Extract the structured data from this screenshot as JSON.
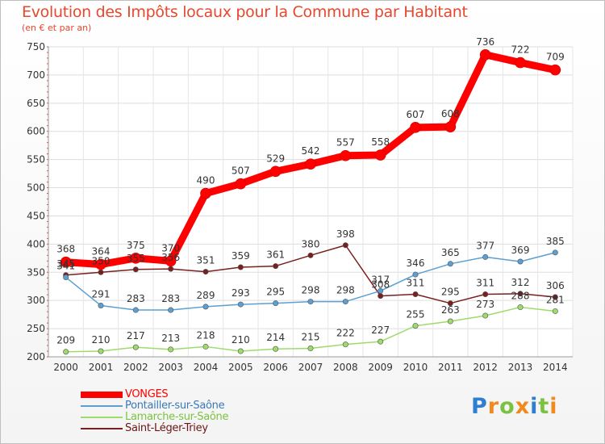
{
  "chart_data": {
    "type": "line",
    "title": "Evolution des Impôts locaux pour la Commune par Habitant",
    "subtitle": "(en € et par an)",
    "x": [
      "2000",
      "2001",
      "2002",
      "2003",
      "2004",
      "2005",
      "2006",
      "2007",
      "2008",
      "2009",
      "2010",
      "2011",
      "2012",
      "2013",
      "2014"
    ],
    "ylim": [
      200,
      750
    ],
    "yticks": [
      200,
      250,
      300,
      350,
      400,
      450,
      500,
      550,
      600,
      650,
      700,
      750
    ],
    "grid": true,
    "legend_position": "bottom-left",
    "series": [
      {
        "name": "VONGES",
        "color": "#ff0000",
        "text_color": "#ff0000",
        "values": [
          368,
          364,
          375,
          370,
          490,
          507,
          529,
          542,
          557,
          558,
          607,
          608,
          736,
          722,
          709
        ]
      },
      {
        "name": "Pontailler-sur-Saône",
        "color": "#5b9fd3",
        "text_color": "#3a7ab8",
        "values": [
          341,
          291,
          283,
          283,
          289,
          293,
          295,
          298,
          298,
          317,
          346,
          365,
          377,
          369,
          385
        ]
      },
      {
        "name": "Lamarche-sur-Saône",
        "color": "#9ddb6a",
        "text_color": "#7cc242",
        "values": [
          209,
          210,
          217,
          213,
          218,
          210,
          214,
          215,
          222,
          227,
          255,
          263,
          273,
          288,
          281
        ]
      },
      {
        "name": "Saint-Léger-Triey",
        "color": "#7a1f1f",
        "text_color": "#6b1515",
        "values": [
          345,
          350,
          355,
          356,
          351,
          359,
          361,
          380,
          398,
          308,
          311,
          295,
          311,
          312,
          306
        ]
      }
    ]
  },
  "logo": {
    "letters": [
      "P",
      "r",
      "o",
      "x",
      "i",
      "t",
      "i"
    ],
    "colors": [
      "#2f7fd0",
      "#f08a1d",
      "#7cc242",
      "#f08a1d",
      "#2f7fd0",
      "#7cc242",
      "#f08a1d"
    ]
  }
}
